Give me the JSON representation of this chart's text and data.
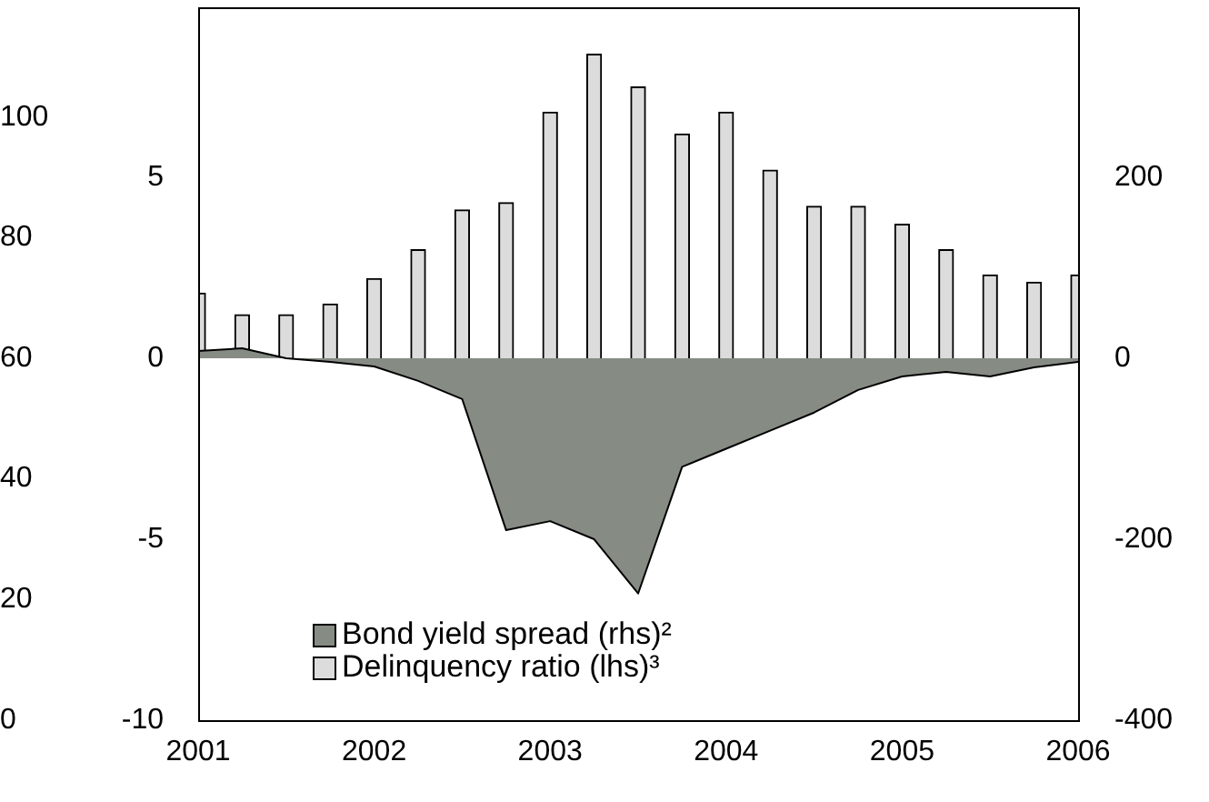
{
  "chart_data": {
    "type": "bar",
    "x": [
      2001,
      2001.25,
      2001.5,
      2001.75,
      2002,
      2002.25,
      2002.5,
      2002.75,
      2003,
      2003.25,
      2003.5,
      2003.75,
      2004,
      2004.25,
      2004.5,
      2004.75,
      2005,
      2005.25,
      2005.5,
      2005.75,
      2006
    ],
    "series": [
      {
        "name": "Bond yield spread (rhs)²",
        "type": "area",
        "axis": "y2",
        "color": "#868c84",
        "values": [
          8,
          11,
          0,
          -4,
          -9,
          -25,
          -45,
          -190,
          -180,
          -200,
          -260,
          -120,
          -100,
          -80,
          -60,
          -35,
          -20,
          -15,
          -20,
          -10,
          -4
        ]
      },
      {
        "name": "Delinquency ratio (lhs)³",
        "color": "#dcdcdc",
        "values": [
          1.8,
          1.2,
          1.2,
          1.5,
          2.2,
          3.0,
          4.1,
          4.3,
          6.8,
          8.4,
          7.5,
          6.2,
          6.8,
          5.2,
          4.2,
          4.2,
          3.7,
          3.0,
          2.3,
          2.1,
          2.3
        ]
      }
    ],
    "xlim": [
      2001,
      2006
    ],
    "xticks": [
      2001,
      2002,
      2003,
      2004,
      2005,
      2006
    ],
    "ylim": [
      -10,
      9.7
    ],
    "yticks": [
      -10,
      -5,
      0,
      5
    ],
    "y2lim": [
      -400,
      388
    ],
    "y2ticks": [
      -400,
      -200,
      0,
      200
    ],
    "y3lim": [
      0,
      118.2
    ],
    "y3ticks": [
      0,
      20,
      40,
      60,
      80,
      100
    ],
    "grid": false,
    "legend": "bottom left"
  }
}
